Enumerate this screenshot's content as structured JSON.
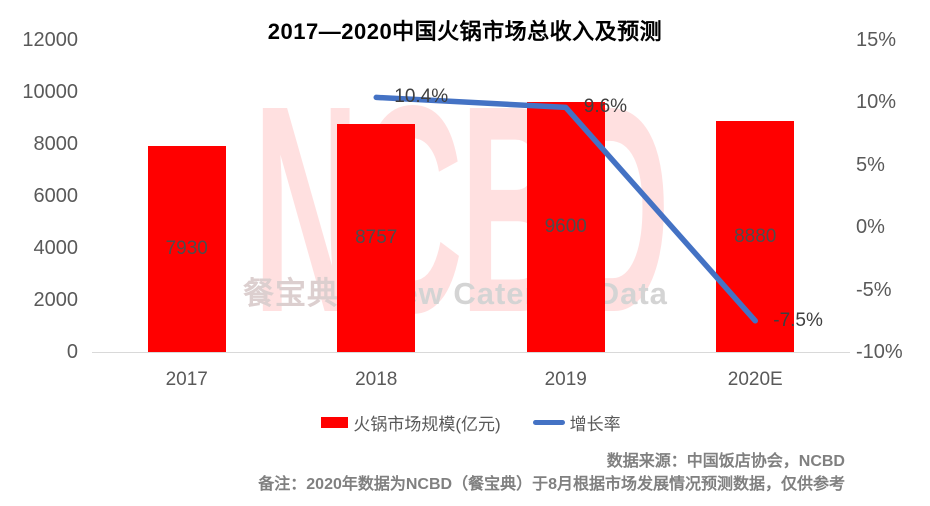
{
  "title": "2017—2020中国火锅市场总收入及预测",
  "watermark": {
    "brand": "NCBD",
    "sub_cn": "餐宝典",
    "sub_en": "New Catering Data"
  },
  "legend": [
    {
      "label": "火锅市场规模(亿元)",
      "color": "#FF0000",
      "marker": "box"
    },
    {
      "label": "增长率",
      "color": "#4472C4",
      "marker": "line"
    }
  ],
  "notes": {
    "source": "数据来源：中国饭店协会，NCBD",
    "remark": "备注：2020年数据为NCBD（餐宝典）于8月根据市场发展情况预测数据，仅供参考"
  },
  "chart_data": {
    "type": "bar+line",
    "title": "2017—2020中国火锅市场总收入及预测",
    "categories": [
      "2017",
      "2018",
      "2019",
      "2020E"
    ],
    "series": [
      {
        "name": "火锅市场规模(亿元)",
        "type": "bar",
        "axis": "left",
        "color": "#FF0000",
        "values": [
          7930,
          8757,
          9600,
          8880
        ],
        "labels": [
          "7930",
          "8757",
          "9600",
          "8880"
        ]
      },
      {
        "name": "增长率",
        "type": "line",
        "axis": "right",
        "color": "#4472C4",
        "values": [
          null,
          10.4,
          9.6,
          -7.5
        ],
        "labels": [
          null,
          "10.4%",
          "9.6%",
          "-7.5%"
        ]
      }
    ],
    "left_axis": {
      "min": 0,
      "max": 12000,
      "ticks": [
        "12000",
        "10000",
        "8000",
        "6000",
        "4000",
        "2000",
        "0"
      ]
    },
    "right_axis": {
      "min": -10,
      "max": 15,
      "ticks": [
        "15%",
        "10%",
        "5%",
        "0%",
        "-5%",
        "-10%"
      ]
    },
    "grid": false,
    "legend_position": "bottom"
  }
}
